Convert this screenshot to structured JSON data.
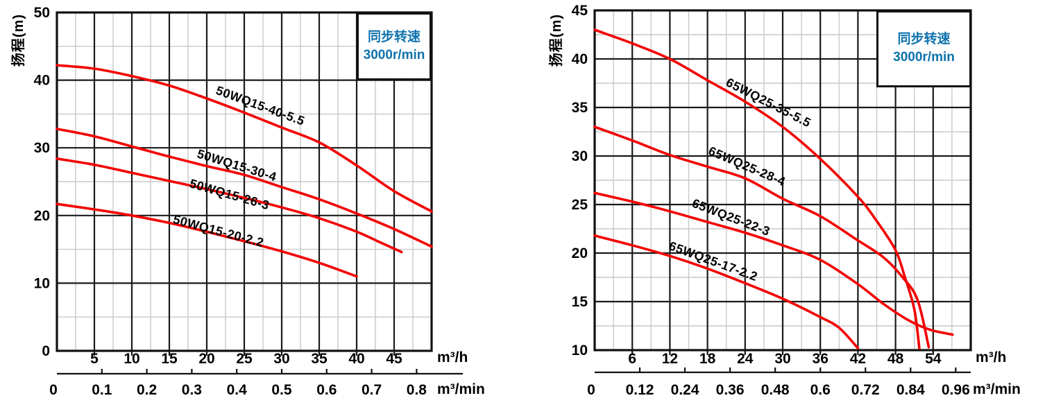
{
  "colors": {
    "curve_red": "#f30000",
    "accent_blue": "#0f72ad",
    "grid_major": "#1a1a1a",
    "grid_minor": "#c8c8c8",
    "border": "#111111",
    "text": "#000000"
  },
  "chart_data": [
    {
      "type": "line",
      "title": "",
      "y_title": "扬程(m)",
      "speed_label": {
        "line1": "同步转速",
        "line2": "3000r/min"
      },
      "x_unit_primary": "m³/h",
      "x_unit_secondary": "m³/min",
      "x_range": [
        0,
        50
      ],
      "y_range": [
        0,
        50
      ],
      "x_major_step": 5,
      "y_major_step": 10,
      "grid": "major+minor",
      "legend": "labels-on-curves",
      "x_tick_labels": [
        5,
        10,
        15,
        20,
        25,
        30,
        35,
        40,
        45
      ],
      "y_tick_labels": [
        0,
        10,
        20,
        30,
        40,
        50
      ],
      "secondary_tick_labels": [
        "0",
        "0.1",
        "0.2",
        "0.3",
        "0.4",
        "0.5",
        "0.6",
        "0.7",
        "0.8"
      ],
      "series": [
        {
          "name": "50WQ15-40-5.5",
          "points": [
            [
              0,
              42.2
            ],
            [
              5,
              41.7
            ],
            [
              10,
              40.6
            ],
            [
              15,
              39.2
            ],
            [
              20,
              37.3
            ],
            [
              25,
              35.2
            ],
            [
              30,
              33.0
            ],
            [
              35,
              30.8
            ],
            [
              40,
              27.4
            ],
            [
              45,
              23.6
            ],
            [
              50,
              20.6
            ]
          ],
          "label_anchor": {
            "x": 21.1,
            "y": 38.0,
            "angle": 20
          }
        },
        {
          "name": "50WQ15-30-4",
          "points": [
            [
              0,
              32.8
            ],
            [
              5,
              31.7
            ],
            [
              10,
              30.2
            ],
            [
              15,
              28.7
            ],
            [
              20,
              27.3
            ],
            [
              25,
              26.0
            ],
            [
              30,
              24.2
            ],
            [
              35,
              22.4
            ],
            [
              40,
              20.3
            ],
            [
              45,
              18.0
            ],
            [
              50,
              15.4
            ]
          ],
          "label_anchor": {
            "x": 18.6,
            "y": 28.6,
            "angle": 17
          }
        },
        {
          "name": "50WQ15-26-3",
          "points": [
            [
              0,
              28.4
            ],
            [
              5,
              27.5
            ],
            [
              10,
              26.3
            ],
            [
              15,
              25.1
            ],
            [
              20,
              23.9
            ],
            [
              25,
              22.6
            ],
            [
              30,
              21.2
            ],
            [
              35,
              19.6
            ],
            [
              40,
              17.6
            ],
            [
              43,
              16.1
            ],
            [
              46,
              14.6
            ]
          ],
          "label_anchor": {
            "x": 17.6,
            "y": 24.2,
            "angle": 16
          }
        },
        {
          "name": "50WQ15-20-2.2",
          "points": [
            [
              0,
              21.7
            ],
            [
              5,
              20.9
            ],
            [
              10,
              20.0
            ],
            [
              15,
              18.9
            ],
            [
              20,
              17.6
            ],
            [
              25,
              16.2
            ],
            [
              30,
              14.7
            ],
            [
              35,
              13.0
            ],
            [
              40,
              11.0
            ]
          ],
          "label_anchor": {
            "x": 15.4,
            "y": 18.9,
            "angle": 15
          }
        }
      ]
    },
    {
      "type": "line",
      "title": "",
      "y_title": "扬程(m)",
      "speed_label": {
        "line1": "同步转速",
        "line2": "3000r/min"
      },
      "x_unit_primary": "m³/h",
      "x_unit_secondary": "m³/min",
      "x_range": [
        0,
        60
      ],
      "y_range": [
        10,
        45
      ],
      "x_major_step": 6,
      "y_major_step": 5,
      "grid": "major+minor",
      "legend": "labels-on-curves",
      "x_tick_labels": [
        6,
        12,
        18,
        24,
        30,
        36,
        42,
        48,
        54
      ],
      "y_tick_labels": [
        10,
        15,
        20,
        25,
        30,
        35,
        40,
        45
      ],
      "secondary_tick_labels": [
        "0",
        "0.12",
        "0.24",
        "0.36",
        "0.48",
        "0.6",
        "0.72",
        "0.84",
        "0.96"
      ],
      "series": [
        {
          "name": "65WQ25-35-5.5",
          "points": [
            [
              0,
              43.0
            ],
            [
              6,
              41.6
            ],
            [
              12,
              40.0
            ],
            [
              18,
              37.8
            ],
            [
              24,
              35.6
            ],
            [
              30,
              33.0
            ],
            [
              36,
              29.7
            ],
            [
              42,
              25.8
            ],
            [
              45,
              23.3
            ],
            [
              48,
              20.3
            ],
            [
              49.5,
              17.5
            ],
            [
              51,
              14.2
            ],
            [
              51.8,
              10.2
            ]
          ],
          "label_anchor": {
            "x": 20.8,
            "y": 37.3,
            "angle": 27
          }
        },
        {
          "name": "65WQ25-28-4",
          "points": [
            [
              0,
              33.0
            ],
            [
              6,
              31.6
            ],
            [
              12,
              30.1
            ],
            [
              18,
              28.9
            ],
            [
              24,
              27.7
            ],
            [
              30,
              25.6
            ],
            [
              36,
              23.8
            ],
            [
              42,
              21.3
            ],
            [
              46,
              19.6
            ],
            [
              49,
              17.6
            ],
            [
              51.5,
              15.2
            ],
            [
              53.3,
              10.3
            ]
          ],
          "label_anchor": {
            "x": 18.0,
            "y": 30.2,
            "angle": 23
          }
        },
        {
          "name": "65WQ25-22-3",
          "points": [
            [
              0,
              26.2
            ],
            [
              6,
              25.3
            ],
            [
              12,
              24.3
            ],
            [
              18,
              23.2
            ],
            [
              24,
              22.1
            ],
            [
              30,
              20.8
            ],
            [
              36,
              19.3
            ],
            [
              42,
              16.8
            ],
            [
              46,
              14.8
            ],
            [
              50,
              13.1
            ],
            [
              53.5,
              12.1
            ],
            [
              57.1,
              11.6
            ]
          ],
          "label_anchor": {
            "x": 15.4,
            "y": 24.8,
            "angle": 21
          }
        },
        {
          "name": "65WQ25-17-2.2",
          "points": [
            [
              0,
              21.8
            ],
            [
              6,
              20.8
            ],
            [
              12,
              19.7
            ],
            [
              18,
              18.4
            ],
            [
              24,
              16.9
            ],
            [
              30,
              15.3
            ],
            [
              36,
              13.4
            ],
            [
              39,
              12.3
            ],
            [
              42,
              10.2
            ]
          ],
          "label_anchor": {
            "x": 11.7,
            "y": 20.4,
            "angle": 20
          }
        }
      ]
    }
  ]
}
